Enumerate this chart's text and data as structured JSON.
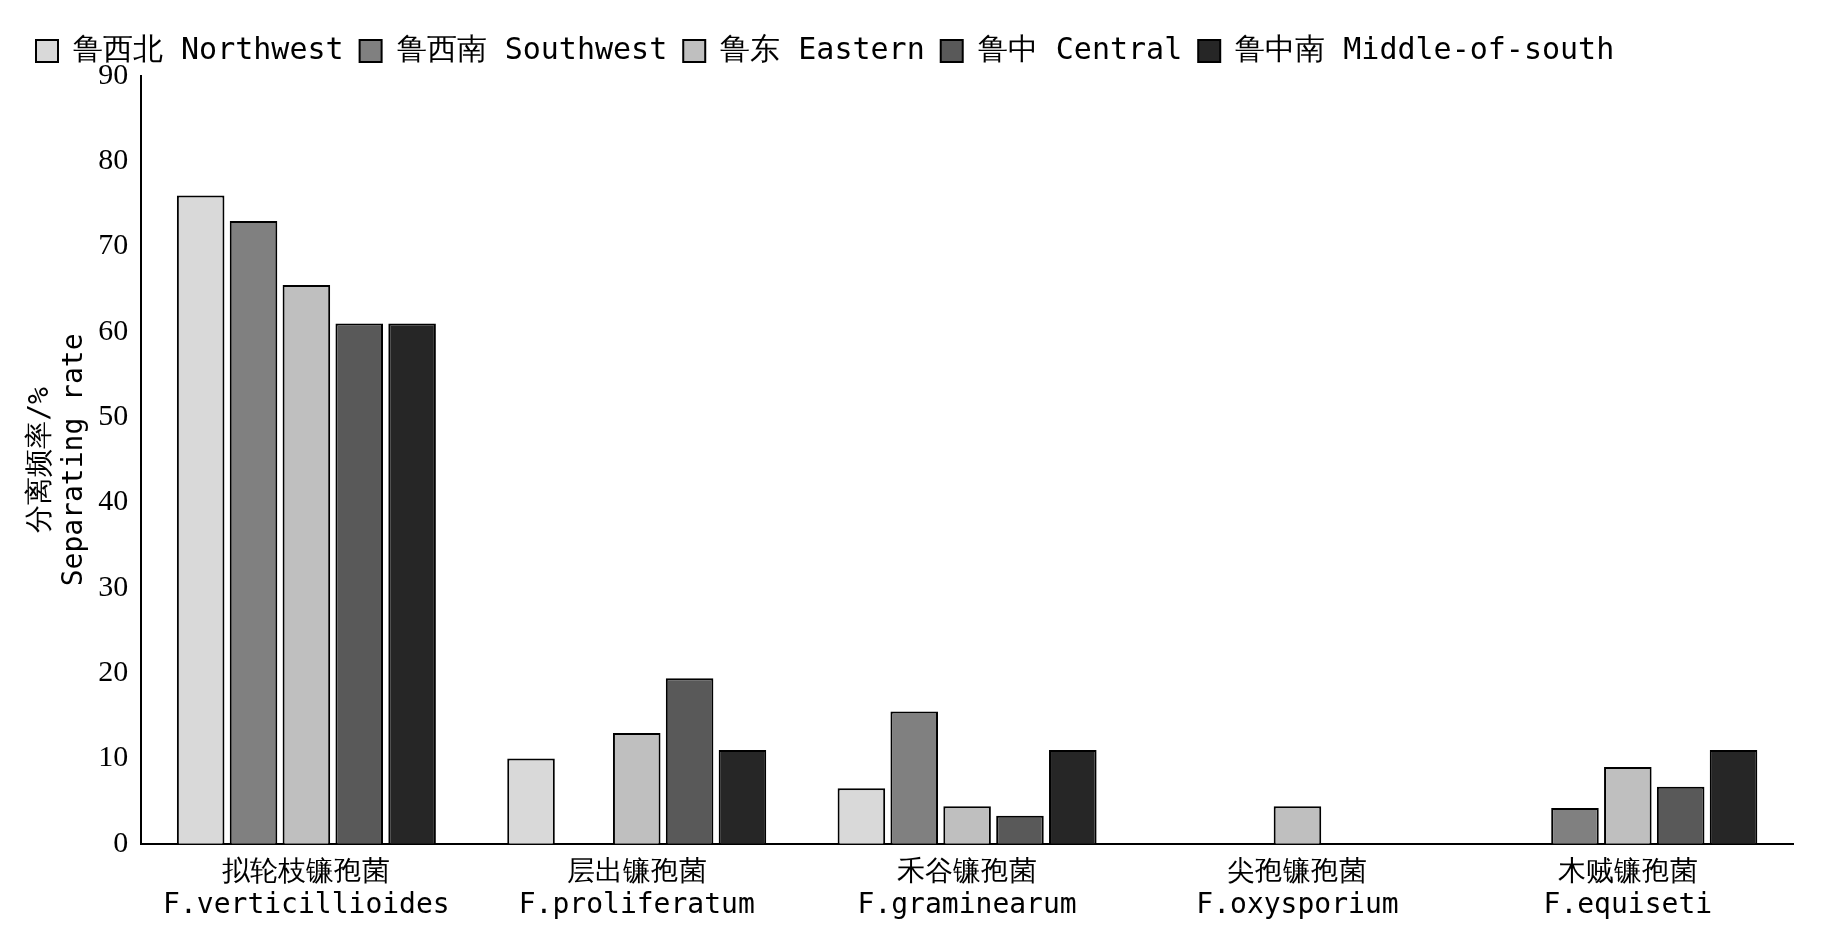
{
  "chart_data": {
    "type": "bar",
    "categories": [
      "拟轮枝镰孢菌\nF.verticillioides",
      "层出镰孢菌\nF.proliferatum",
      "禾谷镰孢菌\nF.graminearum",
      "尖孢镰孢菌\nF.oxysporium",
      "木贼镰孢菌\nF.equiseti"
    ],
    "series": [
      {
        "name": "鲁西北 Northwest",
        "color": "#d9d9d9",
        "values": [
          76,
          10,
          6.5,
          0,
          0
        ]
      },
      {
        "name": "鲁西南 Southwest",
        "color": "#808080",
        "values": [
          73,
          0,
          15.5,
          0,
          4.2
        ]
      },
      {
        "name": "鲁东 Eastern",
        "color": "#bfbfbf",
        "values": [
          65.5,
          13,
          4.4,
          4.4,
          9
        ]
      },
      {
        "name": "鲁中 Central",
        "color": "#595959",
        "values": [
          61,
          19.4,
          3.3,
          0,
          6.7
        ]
      },
      {
        "name": "鲁中南 Middle-of-south",
        "color": "#262626",
        "values": [
          61,
          11,
          11,
          0,
          11
        ]
      }
    ],
    "ylabel": "分离频率/%\nSeparating rate",
    "ylim": [
      0,
      90
    ],
    "yticks": [
      0,
      10,
      20,
      30,
      40,
      50,
      60,
      70,
      80,
      90
    ],
    "grid": false,
    "legend": "top"
  }
}
